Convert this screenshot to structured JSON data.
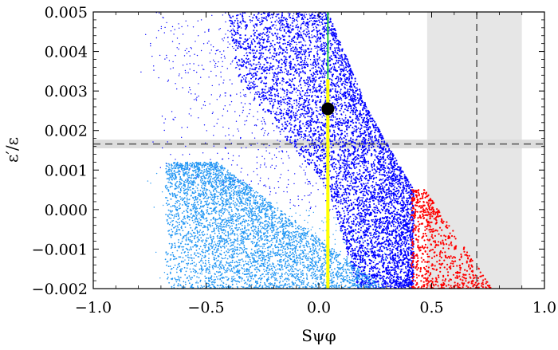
{
  "chart_data": {
    "type": "scatter",
    "title": "",
    "xlabel": "Sψφ",
    "ylabel": "ε′/ε",
    "xlim": [
      -1.0,
      1.0
    ],
    "ylim": [
      -0.002,
      0.005
    ],
    "xticks": [
      "−1.0",
      "−0.5",
      "0.0",
      "0.5",
      "1.0"
    ],
    "yticks": [
      "−0.002",
      "−0.001",
      "0.000",
      "0.001",
      "0.002",
      "0.003",
      "0.004",
      "0.005"
    ],
    "bands": {
      "horizontal": {
        "center": 0.00166,
        "low": 0.00155,
        "high": 0.00177,
        "color": "#d9d9d9"
      },
      "vertical": {
        "center": 0.7,
        "low": 0.48,
        "high": 0.9,
        "color": "#e6e6e6"
      }
    },
    "regions": [
      {
        "name": "dark-blue",
        "color": "#0000ff"
      },
      {
        "name": "light-blue",
        "color": "#2196f3"
      },
      {
        "name": "red",
        "color": "#ff0000"
      }
    ],
    "lines": [
      {
        "name": "green-vertical",
        "x": 0.04,
        "y_range": [
          0.0033,
          0.005
        ],
        "color": "#22cc44"
      },
      {
        "name": "yellow-vertical",
        "x": 0.04,
        "y_range": [
          -0.002,
          0.0033
        ],
        "color": "#ffff00"
      }
    ],
    "point": {
      "x": 0.04,
      "y": 0.00255,
      "color": "#000000"
    },
    "colors": {
      "axis": "#000000",
      "dashed": "#555555"
    }
  }
}
